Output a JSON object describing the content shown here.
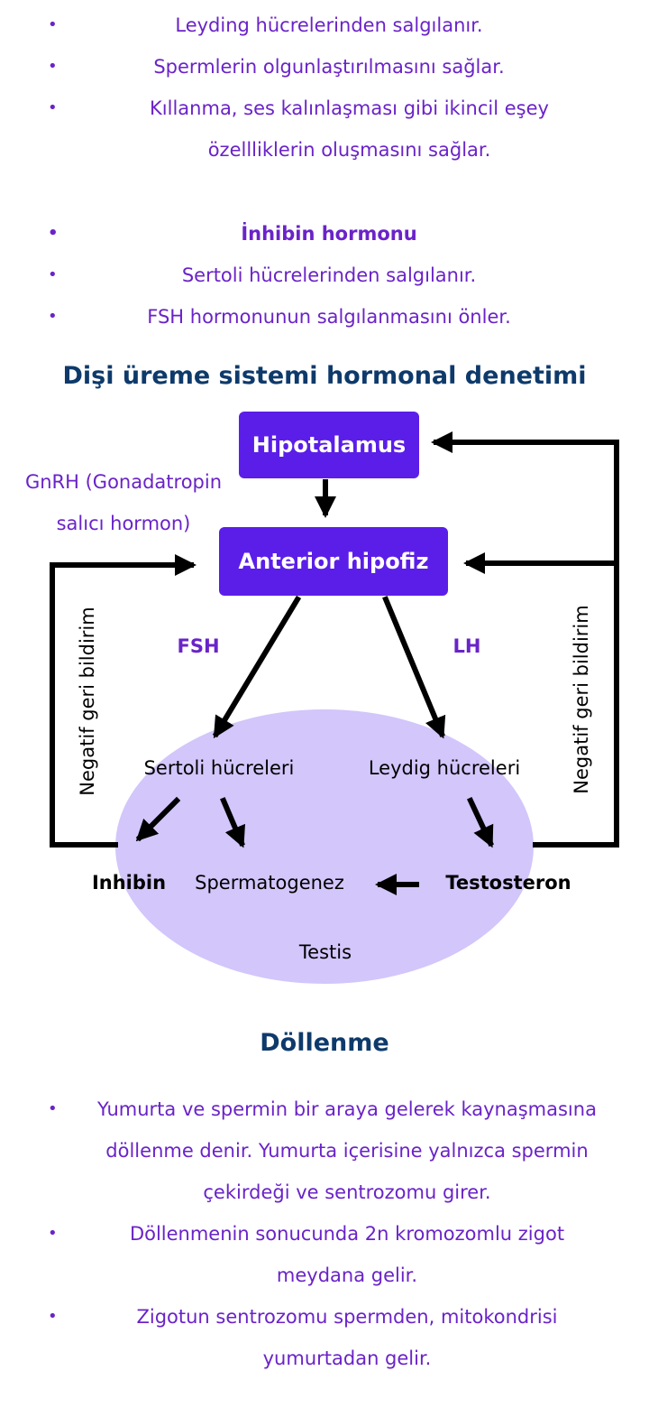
{
  "top_list": [
    {
      "text": "Leyding hücrelerinden salgılanır.",
      "bold": false
    },
    {
      "text": "Spermlerin olgunlaştırılmasını sağlar.",
      "bold": false
    },
    {
      "text": "Kıllanma, ses kalınlaşması gibi ikincil eşey özellliklerin oluşmasını sağlar.",
      "bold": false
    }
  ],
  "inhibin_list": [
    {
      "text": "İnhibin hormonu",
      "bold": true
    },
    {
      "text": "Sertoli hücrelerinden salgılanır.",
      "bold": false
    },
    {
      "text": "FSH hormonunun salgılanmasını önler.",
      "bold": false
    }
  ],
  "diagram": {
    "title": "Dişi üreme sistemi hormonal denetimi",
    "hypothalamus": "Hipotalamus",
    "anterior_pituitary": "Anterior hipofiz",
    "gnrh_line1": "GnRH (Gonadatropin",
    "gnrh_line2": "salıcı hormon)",
    "fsh": "FSH",
    "lh": "LH",
    "sertoli": "Sertoli hücreleri",
    "leydig": "Leydig hücreleri",
    "inhibin": "Inhibin",
    "spermatogenesis": "Spermatogenez",
    "testosterone": "Testosteron",
    "testis": "Testis",
    "negative_feedback_left": "Negatif geri bildirim",
    "negative_feedback_right": "Negatif geri bildirim",
    "colors": {
      "box": "#5b1ee8",
      "ellipse": "#d3c6fb",
      "heading": "#0e3a6b",
      "text_purple": "#6a23c8"
    }
  },
  "fertilization": {
    "heading": "Döllenme",
    "items": [
      "Yumurta ve spermin bir araya gelerek kaynaşmasına döllenme denir. Yumurta içerisine yalnızca spermin çekirdeği ve sentrozomu girer.",
      "Döllenmenin sonucunda 2n kromozomlu zigot meydana gelir.",
      "Zigotun sentrozomu spermden, mitokondrisi yumurtadan gelir."
    ]
  }
}
